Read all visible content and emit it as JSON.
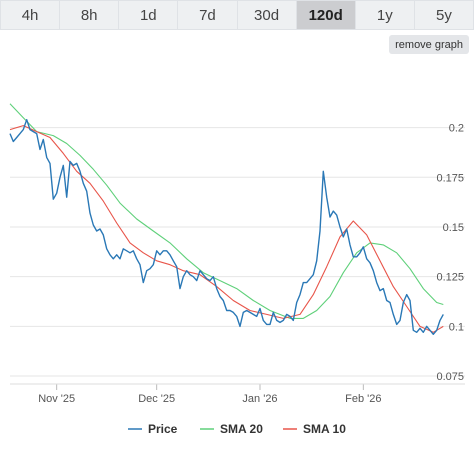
{
  "tabs": [
    {
      "label": "4h",
      "active": false
    },
    {
      "label": "8h",
      "active": false
    },
    {
      "label": "1d",
      "active": false
    },
    {
      "label": "7d",
      "active": false
    },
    {
      "label": "30d",
      "active": false
    },
    {
      "label": "120d",
      "active": true
    },
    {
      "label": "1y",
      "active": false
    },
    {
      "label": "5y",
      "active": false
    }
  ],
  "remove_button_label": "remove graph",
  "colors": {
    "price": "#2a78b6",
    "sma20": "#5fd07a",
    "sma10": "#e8554a",
    "grid": "#e6e6e6"
  },
  "chart_data": {
    "type": "line",
    "xlabel": "",
    "ylabel": "",
    "xlim": [
      "2025-10-18",
      "2026-02-24"
    ],
    "ylim": [
      0.071,
      0.232
    ],
    "y_ticks": [
      0.075,
      0.1,
      0.125,
      0.15,
      0.175,
      0.2
    ],
    "y_tick_labels": [
      "0.075",
      "0.1",
      "0.125",
      "0.15",
      "0.175",
      "0.2"
    ],
    "x_ticks": [
      "2025-11-01",
      "2025-12-01",
      "2026-01-01",
      "2026-02-01"
    ],
    "x_tick_labels": [
      "Nov '25",
      "Dec '25",
      "Jan '26",
      "Feb '26"
    ],
    "legend_position": "bottom",
    "grid": true,
    "series": [
      {
        "name": "Price",
        "color_key": "price",
        "points": [
          [
            "2025-10-18",
            0.197
          ],
          [
            "2025-10-19",
            0.193
          ],
          [
            "2025-10-20",
            0.195
          ],
          [
            "2025-10-21",
            0.197
          ],
          [
            "2025-10-22",
            0.199
          ],
          [
            "2025-10-23",
            0.204
          ],
          [
            "2025-10-24",
            0.199
          ],
          [
            "2025-10-25",
            0.198
          ],
          [
            "2025-10-26",
            0.197
          ],
          [
            "2025-10-27",
            0.189
          ],
          [
            "2025-10-28",
            0.194
          ],
          [
            "2025-10-29",
            0.185
          ],
          [
            "2025-10-30",
            0.182
          ],
          [
            "2025-10-31",
            0.164
          ],
          [
            "2025-11-01",
            0.167
          ],
          [
            "2025-11-02",
            0.175
          ],
          [
            "2025-11-03",
            0.181
          ],
          [
            "2025-11-04",
            0.165
          ],
          [
            "2025-11-05",
            0.183
          ],
          [
            "2025-11-06",
            0.181
          ],
          [
            "2025-11-07",
            0.182
          ],
          [
            "2025-11-08",
            0.178
          ],
          [
            "2025-11-09",
            0.172
          ],
          [
            "2025-11-10",
            0.168
          ],
          [
            "2025-11-11",
            0.157
          ],
          [
            "2025-11-12",
            0.151
          ],
          [
            "2025-11-13",
            0.148
          ],
          [
            "2025-11-14",
            0.149
          ],
          [
            "2025-11-15",
            0.146
          ],
          [
            "2025-11-16",
            0.139
          ],
          [
            "2025-11-17",
            0.136
          ],
          [
            "2025-11-18",
            0.134
          ],
          [
            "2025-11-19",
            0.136
          ],
          [
            "2025-11-20",
            0.134
          ],
          [
            "2025-11-21",
            0.139
          ],
          [
            "2025-11-22",
            0.138
          ],
          [
            "2025-11-23",
            0.137
          ],
          [
            "2025-11-24",
            0.138
          ],
          [
            "2025-11-25",
            0.134
          ],
          [
            "2025-11-26",
            0.131
          ],
          [
            "2025-11-27",
            0.122
          ],
          [
            "2025-11-28",
            0.128
          ],
          [
            "2025-11-29",
            0.129
          ],
          [
            "2025-11-30",
            0.131
          ],
          [
            "2025-12-01",
            0.138
          ],
          [
            "2025-12-02",
            0.136
          ],
          [
            "2025-12-03",
            0.138
          ],
          [
            "2025-12-04",
            0.138
          ],
          [
            "2025-12-05",
            0.136
          ],
          [
            "2025-12-06",
            0.133
          ],
          [
            "2025-12-07",
            0.13
          ],
          [
            "2025-12-08",
            0.119
          ],
          [
            "2025-12-09",
            0.125
          ],
          [
            "2025-12-10",
            0.128
          ],
          [
            "2025-12-11",
            0.126
          ],
          [
            "2025-12-12",
            0.125
          ],
          [
            "2025-12-13",
            0.123
          ],
          [
            "2025-12-14",
            0.128
          ],
          [
            "2025-12-15",
            0.126
          ],
          [
            "2025-12-16",
            0.124
          ],
          [
            "2025-12-17",
            0.123
          ],
          [
            "2025-12-18",
            0.125
          ],
          [
            "2025-12-19",
            0.119
          ],
          [
            "2025-12-20",
            0.115
          ],
          [
            "2025-12-21",
            0.113
          ],
          [
            "2025-12-22",
            0.108
          ],
          [
            "2025-12-23",
            0.108
          ],
          [
            "2025-12-24",
            0.107
          ],
          [
            "2025-12-25",
            0.105
          ],
          [
            "2025-12-26",
            0.1
          ],
          [
            "2025-12-27",
            0.107
          ],
          [
            "2025-12-28",
            0.108
          ],
          [
            "2025-12-29",
            0.107
          ],
          [
            "2025-12-30",
            0.106
          ],
          [
            "2025-12-31",
            0.105
          ],
          [
            "2026-01-01",
            0.109
          ],
          [
            "2026-01-02",
            0.103
          ],
          [
            "2026-01-03",
            0.101
          ],
          [
            "2026-01-04",
            0.101
          ],
          [
            "2026-01-05",
            0.107
          ],
          [
            "2026-01-06",
            0.103
          ],
          [
            "2026-01-07",
            0.102
          ],
          [
            "2026-01-08",
            0.103
          ],
          [
            "2026-01-09",
            0.106
          ],
          [
            "2026-01-10",
            0.105
          ],
          [
            "2026-01-11",
            0.103
          ],
          [
            "2026-01-12",
            0.112
          ],
          [
            "2026-01-13",
            0.116
          ],
          [
            "2026-01-14",
            0.122
          ],
          [
            "2026-01-15",
            0.122
          ],
          [
            "2026-01-16",
            0.124
          ],
          [
            "2026-01-17",
            0.126
          ],
          [
            "2026-01-18",
            0.133
          ],
          [
            "2026-01-19",
            0.148
          ],
          [
            "2026-01-20",
            0.178
          ],
          [
            "2026-01-21",
            0.165
          ],
          [
            "2026-01-22",
            0.155
          ],
          [
            "2026-01-23",
            0.158
          ],
          [
            "2026-01-24",
            0.156
          ],
          [
            "2026-01-25",
            0.15
          ],
          [
            "2026-01-26",
            0.145
          ],
          [
            "2026-01-27",
            0.149
          ],
          [
            "2026-01-28",
            0.141
          ],
          [
            "2026-01-29",
            0.135
          ],
          [
            "2026-01-30",
            0.135
          ],
          [
            "2026-01-31",
            0.137
          ],
          [
            "2026-02-01",
            0.14
          ],
          [
            "2026-02-02",
            0.134
          ],
          [
            "2026-02-03",
            0.132
          ],
          [
            "2026-02-04",
            0.128
          ],
          [
            "2026-02-05",
            0.122
          ],
          [
            "2026-02-06",
            0.118
          ],
          [
            "2026-02-07",
            0.119
          ],
          [
            "2026-02-08",
            0.113
          ],
          [
            "2026-02-09",
            0.112
          ],
          [
            "2026-02-10",
            0.106
          ],
          [
            "2026-02-11",
            0.101
          ],
          [
            "2026-02-12",
            0.103
          ],
          [
            "2026-02-13",
            0.112
          ],
          [
            "2026-02-14",
            0.116
          ],
          [
            "2026-02-15",
            0.113
          ],
          [
            "2026-02-16",
            0.098
          ],
          [
            "2026-02-17",
            0.097
          ],
          [
            "2026-02-18",
            0.099
          ],
          [
            "2026-02-19",
            0.097
          ],
          [
            "2026-02-20",
            0.1
          ],
          [
            "2026-02-21",
            0.098
          ],
          [
            "2026-02-22",
            0.096
          ],
          [
            "2026-02-23",
            0.098
          ],
          [
            "2026-02-24",
            0.103
          ],
          [
            "2026-02-25",
            0.106
          ]
        ]
      },
      {
        "name": "SMA 20",
        "color_key": "sma20",
        "points": [
          [
            "2025-10-18",
            0.212
          ],
          [
            "2025-10-22",
            0.205
          ],
          [
            "2025-10-26",
            0.198
          ],
          [
            "2025-10-31",
            0.196
          ],
          [
            "2025-11-04",
            0.192
          ],
          [
            "2025-11-08",
            0.186
          ],
          [
            "2025-11-12",
            0.179
          ],
          [
            "2025-11-16",
            0.171
          ],
          [
            "2025-11-20",
            0.162
          ],
          [
            "2025-11-25",
            0.154
          ],
          [
            "2025-11-30",
            0.148
          ],
          [
            "2025-12-05",
            0.142
          ],
          [
            "2025-12-10",
            0.134
          ],
          [
            "2025-12-15",
            0.127
          ],
          [
            "2025-12-20",
            0.123
          ],
          [
            "2025-12-25",
            0.119
          ],
          [
            "2025-12-30",
            0.113
          ],
          [
            "2026-01-04",
            0.108
          ],
          [
            "2026-01-10",
            0.104
          ],
          [
            "2026-01-14",
            0.104
          ],
          [
            "2026-01-18",
            0.108
          ],
          [
            "2026-01-22",
            0.115
          ],
          [
            "2026-01-26",
            0.127
          ],
          [
            "2026-01-30",
            0.137
          ],
          [
            "2026-02-03",
            0.142
          ],
          [
            "2026-02-07",
            0.141
          ],
          [
            "2026-02-11",
            0.137
          ],
          [
            "2026-02-15",
            0.129
          ],
          [
            "2026-02-19",
            0.119
          ],
          [
            "2026-02-23",
            0.112
          ],
          [
            "2026-02-25",
            0.111
          ]
        ]
      },
      {
        "name": "SMA 10",
        "color_key": "sma10",
        "points": [
          [
            "2025-10-18",
            0.199
          ],
          [
            "2025-10-22",
            0.201
          ],
          [
            "2025-10-26",
            0.198
          ],
          [
            "2025-10-30",
            0.195
          ],
          [
            "2025-11-03",
            0.187
          ],
          [
            "2025-11-07",
            0.178
          ],
          [
            "2025-11-11",
            0.172
          ],
          [
            "2025-11-15",
            0.163
          ],
          [
            "2025-11-19",
            0.152
          ],
          [
            "2025-11-23",
            0.142
          ],
          [
            "2025-11-27",
            0.137
          ],
          [
            "2025-12-01",
            0.133
          ],
          [
            "2025-12-05",
            0.131
          ],
          [
            "2025-12-09",
            0.128
          ],
          [
            "2025-12-14",
            0.126
          ],
          [
            "2025-12-19",
            0.12
          ],
          [
            "2025-12-24",
            0.113
          ],
          [
            "2025-12-29",
            0.108
          ],
          [
            "2026-01-03",
            0.106
          ],
          [
            "2026-01-08",
            0.104
          ],
          [
            "2026-01-13",
            0.106
          ],
          [
            "2026-01-17",
            0.116
          ],
          [
            "2026-01-21",
            0.13
          ],
          [
            "2026-01-25",
            0.145
          ],
          [
            "2026-01-29",
            0.153
          ],
          [
            "2026-02-02",
            0.146
          ],
          [
            "2026-02-06",
            0.133
          ],
          [
            "2026-02-10",
            0.12
          ],
          [
            "2026-02-14",
            0.11
          ],
          [
            "2026-02-18",
            0.1
          ],
          [
            "2026-02-22",
            0.097
          ],
          [
            "2026-02-25",
            0.1
          ]
        ]
      }
    ]
  }
}
